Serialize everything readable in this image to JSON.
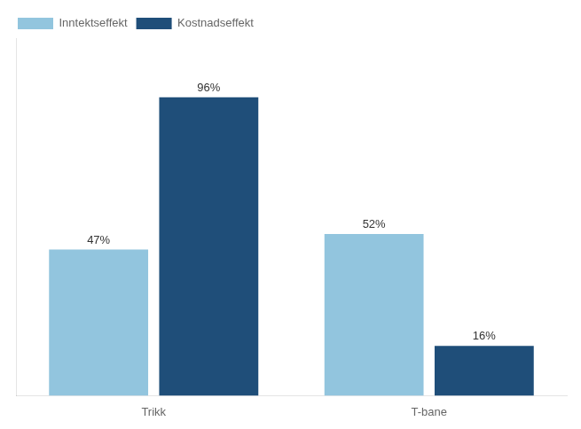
{
  "chart_data": {
    "type": "bar",
    "categories": [
      "Trikk",
      "T-bane"
    ],
    "series": [
      {
        "name": "Inntektseffekt",
        "color": "#92C5DE",
        "values": [
          47,
          52
        ],
        "value_labels": [
          "47%",
          "52%"
        ]
      },
      {
        "name": "Kostnadseffekt",
        "color": "#1F4E79",
        "values": [
          96,
          16
        ],
        "value_labels": [
          "96%",
          "16%"
        ]
      }
    ],
    "ylim": [
      0,
      115
    ],
    "grid": false,
    "legend": "upper left",
    "data_labels": true,
    "tick_labels": "x"
  }
}
